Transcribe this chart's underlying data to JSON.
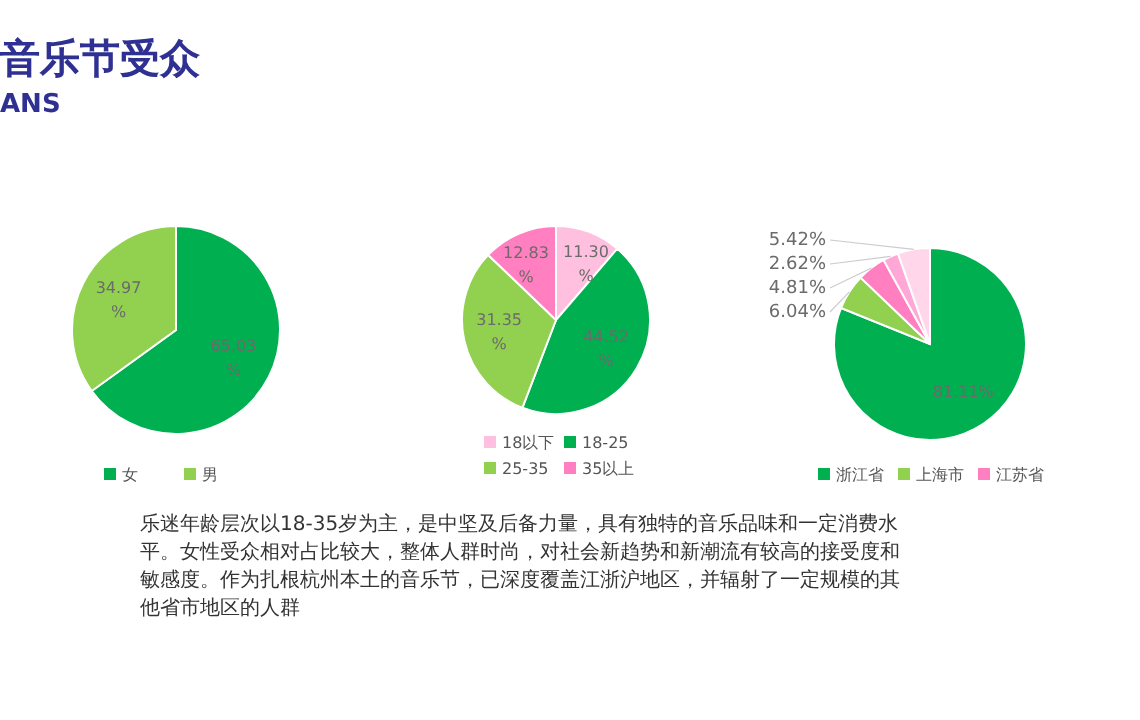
{
  "chart_data": [
    {
      "type": "other",
      "title": "音乐节受众",
      "subtitle": "ANS",
      "annotations": [
        "乐迷年龄层次以18-35岁为主，是中坚及后备力量，具有独特的音乐品味和一定消费水平。女性受众相对占比较大，整体人群时尚，对社会新趋势和新潮流有较高的接受度和敏感度。作为扎根杭州本土的音乐节，已深度覆盖江浙沪地区，并辐射了一定规模的其他省市地区的人群"
      ]
    },
    {
      "type": "pie",
      "categories": [
        "女",
        "男"
      ],
      "values": [
        65.03,
        34.97
      ],
      "colors": [
        "#00b050",
        "#92d050"
      ],
      "value_labels": [
        "65.03 %",
        "34.97 %"
      ],
      "legend": "bottom"
    },
    {
      "type": "pie",
      "categories": [
        "18以下",
        "18-25",
        "25-35",
        "35以上"
      ],
      "values": [
        11.3,
        44.52,
        31.35,
        12.83
      ],
      "colors": [
        "#ffc0e0",
        "#00b050",
        "#92d050",
        "#ff7fc0"
      ],
      "value_labels": [
        "11.30 %",
        "44.52 %",
        "31.35 %",
        "12.83 %"
      ],
      "legend": "bottom"
    },
    {
      "type": "pie",
      "categories": [
        "浙江省",
        "上海市",
        "江苏省",
        null,
        null
      ],
      "values": [
        81.11,
        6.04,
        4.81,
        2.62,
        5.42
      ],
      "colors": [
        "#00b050",
        "#92d050",
        "#ff7fc0",
        "#ffa8d8",
        "#ffd6ea"
      ],
      "value_labels": [
        "81.11%",
        "6.04%",
        "4.81%",
        "2.62%",
        "5.42%"
      ],
      "legend": "bottom"
    }
  ]
}
